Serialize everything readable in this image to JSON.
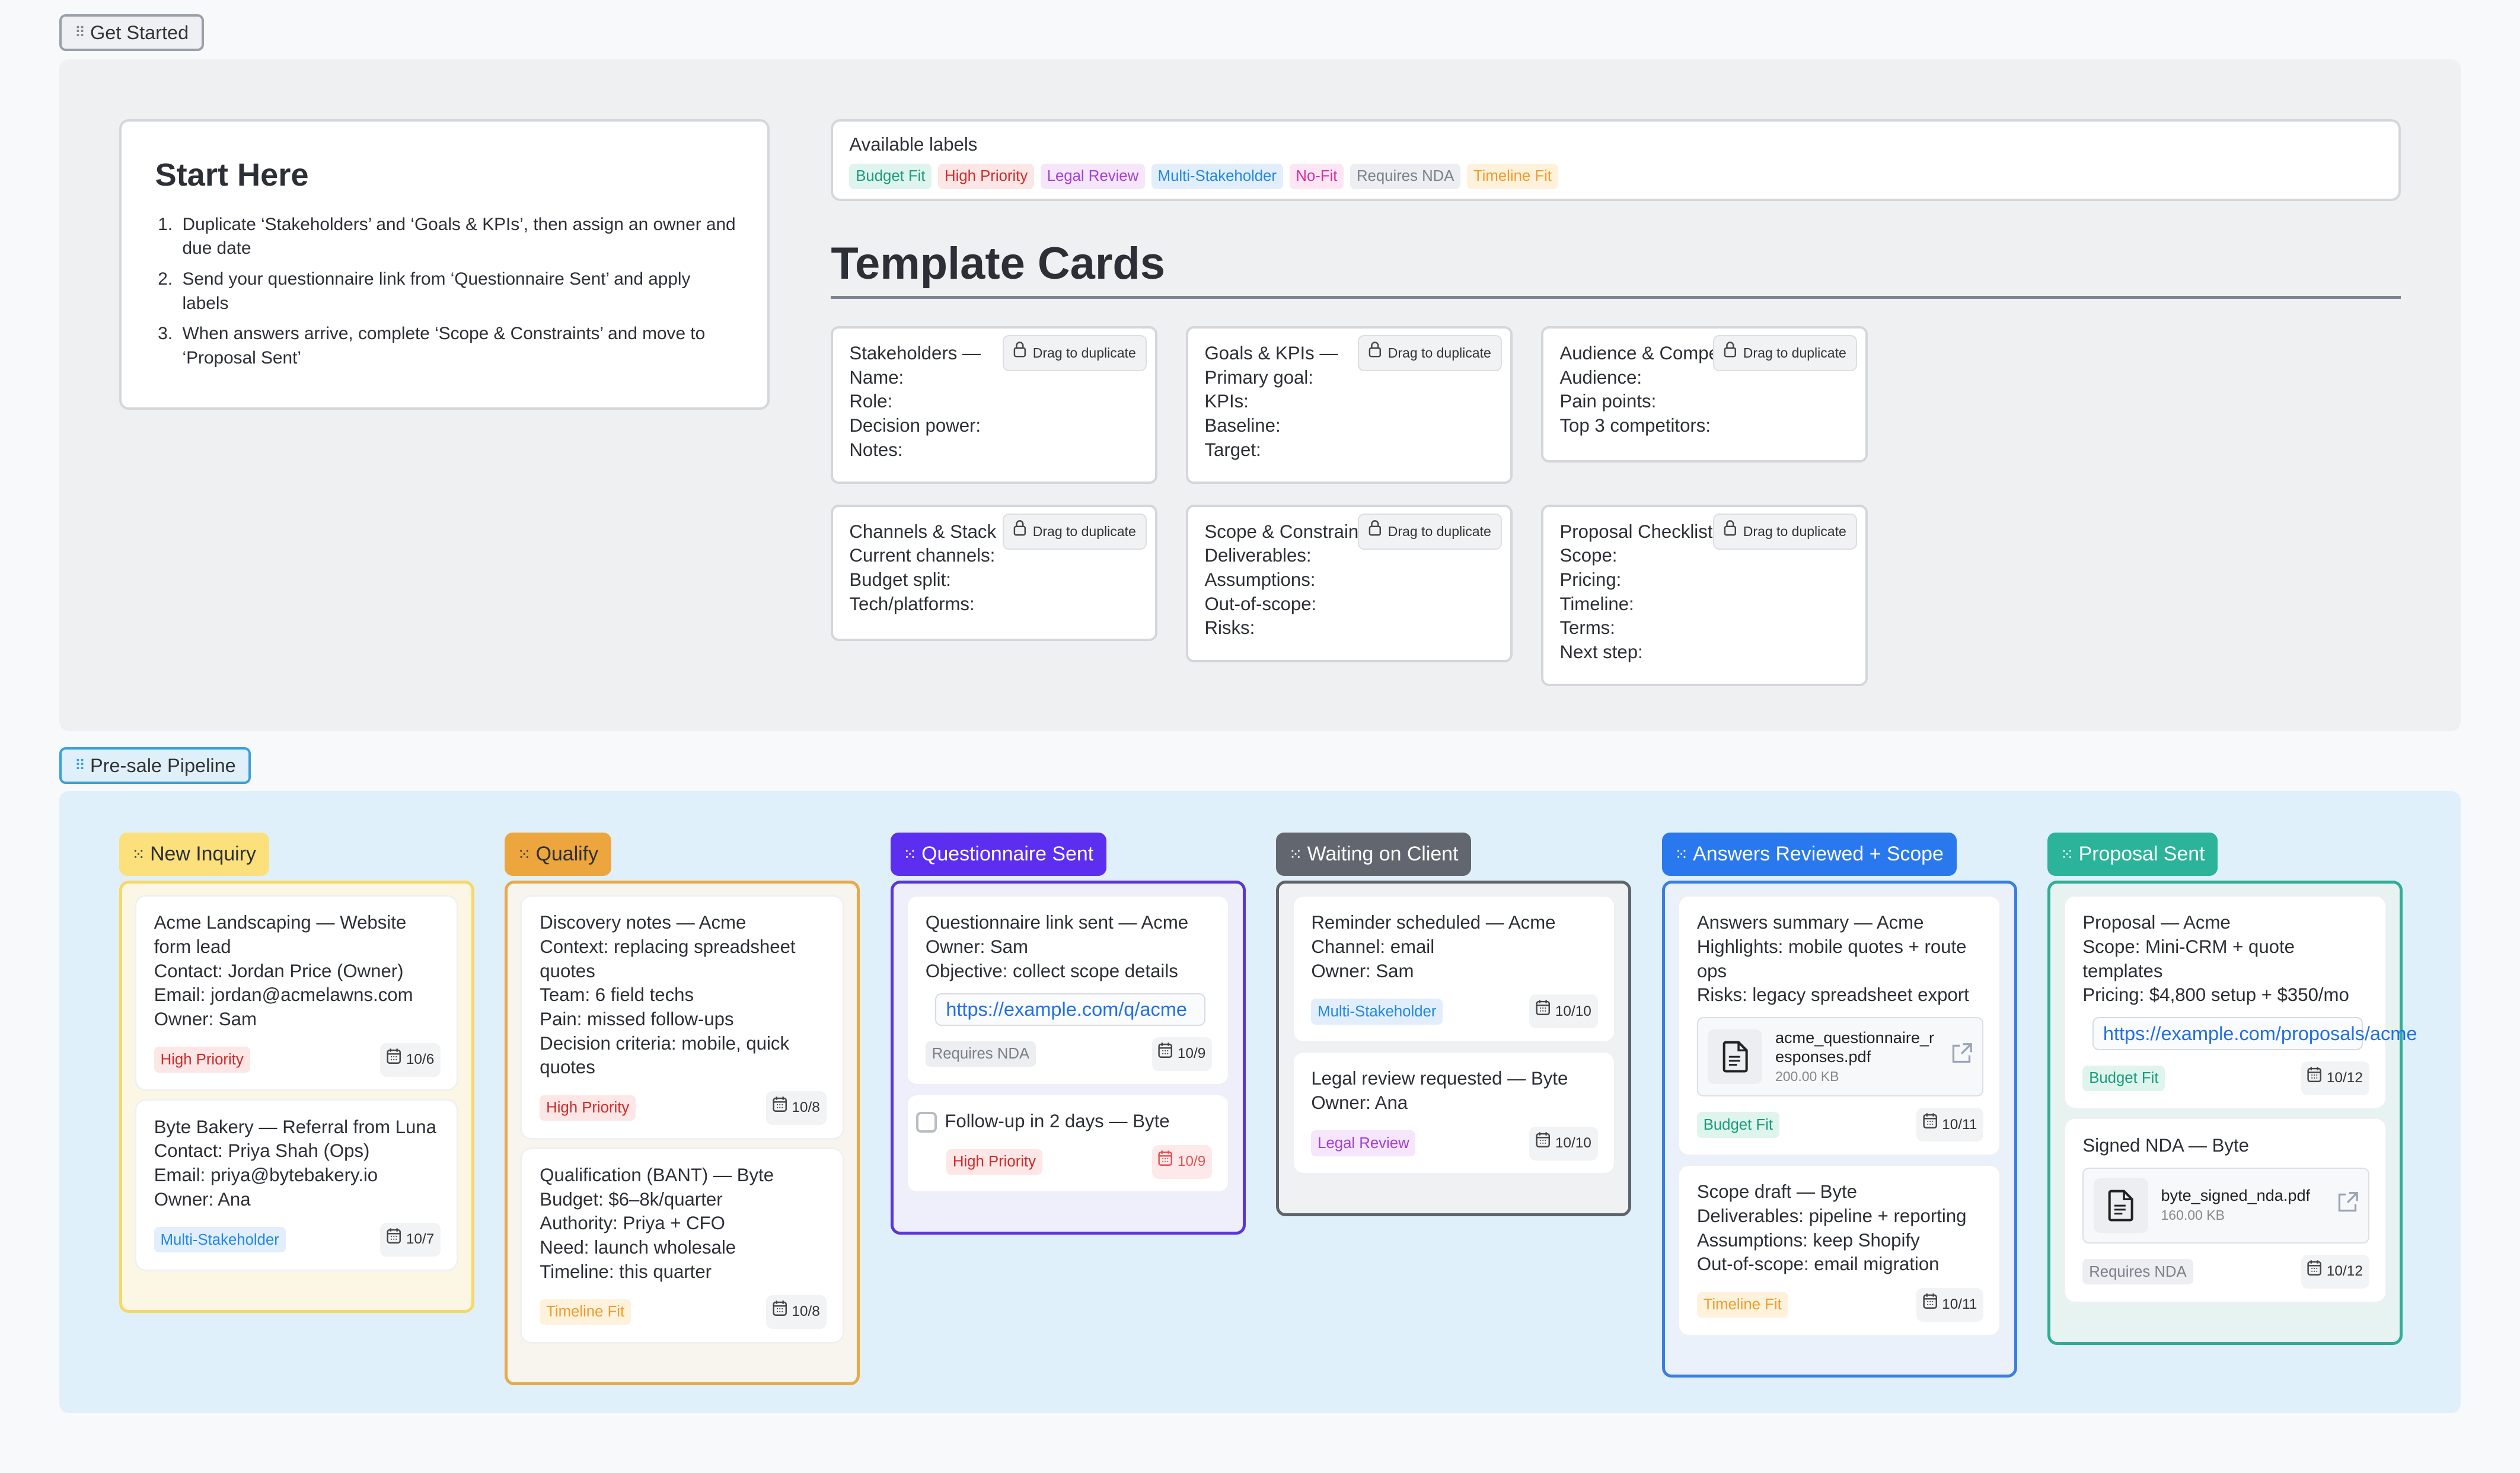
{
  "frames": {
    "get_started": "Get Started",
    "pipeline": "Pre-sale Pipeline"
  },
  "start_here": {
    "title": "Start Here",
    "steps": [
      "Duplicate ‘Stakeholders’ and ‘Goals & KPIs’, then assign an owner and due date",
      "Send your questionnaire link from ‘Questionnaire Sent’ and apply labels",
      "When answers arrive, complete ‘Scope & Constraints’ and move to ‘Proposal Sent’"
    ]
  },
  "available_labels": {
    "title": "Available labels",
    "labels": [
      {
        "text": "Budget Fit",
        "color": "#1a9b7b",
        "bg": "#e0f4ee"
      },
      {
        "text": "High Priority",
        "color": "#d12a2a",
        "bg": "#fde6e6"
      },
      {
        "text": "Legal Review",
        "color": "#a23fd6",
        "bg": "#f5e6fc"
      },
      {
        "text": "Multi-Stakeholder",
        "color": "#1e88e5",
        "bg": "#e3eefd"
      },
      {
        "text": "No-Fit",
        "color": "#d62ba0",
        "bg": "#fde6f4"
      },
      {
        "text": "Requires NDA",
        "color": "#7a7f8a",
        "bg": "#eceef1"
      },
      {
        "text": "Timeline Fit",
        "color": "#f29b2a",
        "bg": "#fef2dd"
      }
    ]
  },
  "template_cards": {
    "title": "Template Cards",
    "drag_label": "Drag to duplicate",
    "cards": [
      {
        "title": "Stakeholders —",
        "fields": [
          "Name:",
          "Role:",
          "Decision power:",
          "Notes:"
        ]
      },
      {
        "title": "Goals & KPIs —",
        "fields": [
          "Primary goal:",
          "KPIs:",
          "Baseline:",
          "Target:"
        ]
      },
      {
        "title": "Audience & Competitors",
        "fields": [
          "Audience:",
          "Pain points:",
          "Top 3 competitors:"
        ]
      },
      {
        "title": "Channels & Stack",
        "fields": [
          "Current channels:",
          "Budget split:",
          "Tech/platforms:"
        ]
      },
      {
        "title": "Scope & Constraints",
        "fields": [
          "Deliverables:",
          "Assumptions:",
          "Out-of-scope:",
          "Risks:"
        ]
      },
      {
        "title": "Proposal Checklist",
        "fields": [
          "Scope:",
          "Pricing:",
          "Timeline:",
          "Terms:",
          "Next step:"
        ]
      }
    ]
  },
  "pipeline": {
    "columns": [
      {
        "title": "New Inquiry",
        "head_bg": "#fbe07c",
        "head_fg": "#2c2f36",
        "border": "#f7d866",
        "bg": "#fcf7e4",
        "cards": [
          {
            "lines": [
              "Acme Landscaping — Website form lead",
              "Contact: Jordan Price (Owner)",
              "Email: jordan@acmelawns.com",
              "Owner: Sam"
            ],
            "label": "High Priority",
            "date": "10/6"
          },
          {
            "lines": [
              "Byte Bakery — Referral from Luna",
              "Contact: Priya Shah (Ops)",
              "Email: priya@bytebakery.io",
              "Owner: Ana"
            ],
            "label": "Multi-Stakeholder",
            "date": "10/7"
          }
        ]
      },
      {
        "title": "Qualify",
        "head_bg": "#eca63d",
        "head_fg": "#2c2f36",
        "border": "#e9a84a",
        "bg": "#f8f4ee",
        "cards": [
          {
            "lines": [
              "Discovery notes — Acme",
              "Context: replacing spreadsheet quotes",
              "Team: 6 field techs",
              "Pain: missed follow-ups",
              "Decision criteria: mobile, quick quotes"
            ],
            "label": "High Priority",
            "date": "10/8"
          },
          {
            "lines": [
              "Qualification (BANT) — Byte",
              "Budget: $6–8k/quarter",
              "Authority: Priya + CFO",
              "Need: launch wholesale",
              "Timeline: this quarter"
            ],
            "label": "Timeline Fit",
            "date": "10/8"
          }
        ]
      },
      {
        "title": "Questionnaire Sent",
        "head_bg": "#5b2ef0",
        "head_fg": "#ffffff",
        "border": "#5b34e0",
        "bg": "#efeefb",
        "cards": [
          {
            "lines": [
              "Questionnaire link sent — Acme",
              "Owner: Sam",
              "Objective: collect scope details"
            ],
            "link": "https://example.com/q/acme",
            "label": "Requires NDA",
            "date": "10/9"
          },
          {
            "lines": [
              "Follow-up in 2 days — Byte"
            ],
            "checkbox": true,
            "label": "High Priority",
            "date": "10/9",
            "overdue": true
          }
        ]
      },
      {
        "title": "Waiting on Client",
        "head_bg": "#62666e",
        "head_fg": "#ffffff",
        "border": "#5f646b",
        "bg": "#f0f1f3",
        "cards": [
          {
            "lines": [
              "Reminder scheduled — Acme",
              "Channel: email",
              "Owner: Sam"
            ],
            "label": "Multi-Stakeholder",
            "date": "10/10"
          },
          {
            "lines": [
              "Legal review requested — Byte",
              "Owner: Ana"
            ],
            "label": "Legal Review",
            "date": "10/10"
          }
        ]
      },
      {
        "title": "Answers Reviewed + Scope",
        "head_bg": "#2a78ee",
        "head_fg": "#ffffff",
        "border": "#3a7fe0",
        "bg": "#eaf1fa",
        "cards": [
          {
            "lines": [
              "Answers summary — Acme",
              "Highlights: mobile quotes + route ops",
              "Risks: legacy spreadsheet export"
            ],
            "file": {
              "name": "acme_questionnaire_responses.pdf",
              "size": "200.00 KB"
            },
            "label": "Budget Fit",
            "date": "10/11"
          },
          {
            "lines": [
              "Scope draft — Byte",
              "Deliverables: pipeline + reporting",
              "Assumptions: keep Shopify",
              "Out-of-scope: email migration"
            ],
            "label": "Timeline Fit",
            "date": "10/11"
          }
        ]
      },
      {
        "title": "Proposal Sent",
        "head_bg": "#2bb49a",
        "head_fg": "#ffffff",
        "border": "#2fae94",
        "bg": "#e7f3f1",
        "cards": [
          {
            "lines": [
              "Proposal — Acme",
              "Scope: Mini-CRM + quote templates",
              "Pricing: $4,800 setup + $350/mo"
            ],
            "link": "https://example.com/proposals/acme",
            "label": "Budget Fit",
            "date": "10/12"
          },
          {
            "lines": [
              "Signed NDA — Byte"
            ],
            "file": {
              "name": "byte_signed_nda.pdf",
              "size": "160.00 KB"
            },
            "label": "Requires NDA",
            "date": "10/12"
          }
        ]
      }
    ]
  }
}
